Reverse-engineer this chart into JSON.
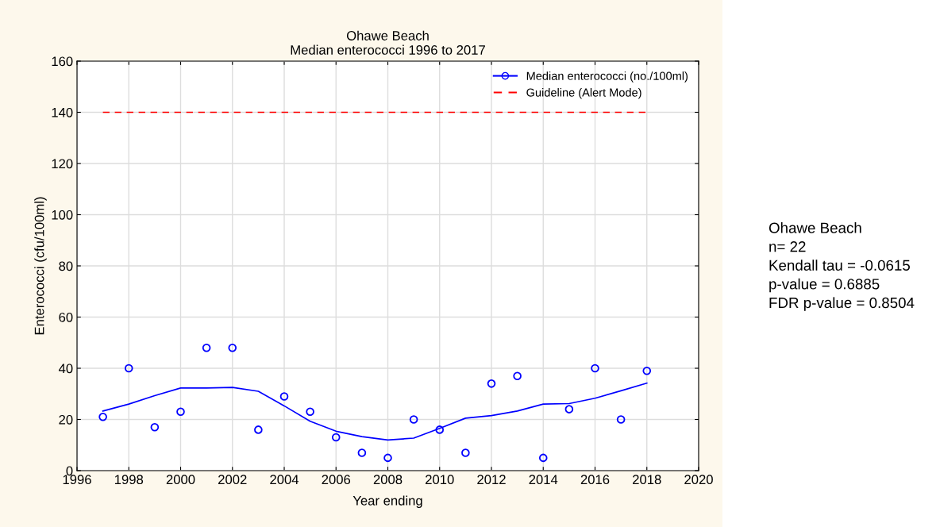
{
  "chart_data": {
    "type": "scatter",
    "title": "Ohawe Beach",
    "subtitle": "Median enterococci 1996 to 2017",
    "xlabel": "Year ending",
    "ylabel": "Enterococci (cfu/100ml)",
    "series": [
      {
        "name": "Median enterococci (no./100ml)",
        "color": "#0000ff",
        "marker": "circle",
        "x": [
          1997,
          1998,
          1999,
          2000,
          2001,
          2002,
          2003,
          2004,
          2005,
          2006,
          2007,
          2008,
          2009,
          2010,
          2011,
          2012,
          2013,
          2014,
          2015,
          2016,
          2017,
          2018
        ],
        "values": [
          21,
          40,
          17,
          23,
          48,
          48,
          16,
          29,
          23,
          13,
          7,
          5,
          20,
          16,
          7,
          34,
          37,
          5,
          24,
          40,
          20,
          39
        ]
      },
      {
        "type": "line",
        "color": "#0000ff",
        "x": [
          1997,
          1998,
          1999,
          2000,
          2001,
          2002,
          2003,
          2004,
          2005,
          2006,
          2007,
          2008,
          2009,
          2010,
          2011,
          2012,
          2013,
          2014,
          2015,
          2016,
          2017,
          2018
        ],
        "values": [
          23.3,
          26,
          29.3,
          32.3,
          32.3,
          32.5,
          31,
          25.3,
          19.3,
          15.4,
          13.3,
          12,
          12.7,
          16.5,
          20.5,
          21.5,
          23.3,
          26,
          26.2,
          28.3,
          31.2,
          34.2
        ]
      },
      {
        "name": "Guideline (Alert Mode)",
        "type": "line",
        "color": "#ff0000",
        "line_style": "dashed",
        "x": [
          1997,
          2018
        ],
        "values": [
          140,
          140
        ]
      }
    ],
    "xlim": [
      1996,
      2020
    ],
    "xticks": [
      1996,
      1998,
      2000,
      2002,
      2004,
      2006,
      2008,
      2010,
      2012,
      2014,
      2016,
      2018,
      2020
    ],
    "ylim": [
      0,
      160
    ],
    "yticks": [
      0,
      20,
      40,
      60,
      80,
      100,
      120,
      140,
      160
    ],
    "grid": true,
    "legend": "top right",
    "annotations": [
      "Ohawe Beach\nn= 22\nKendall tau = -0.0615\np-value = 0.6885\nFDR p-value = 0.8504"
    ]
  }
}
